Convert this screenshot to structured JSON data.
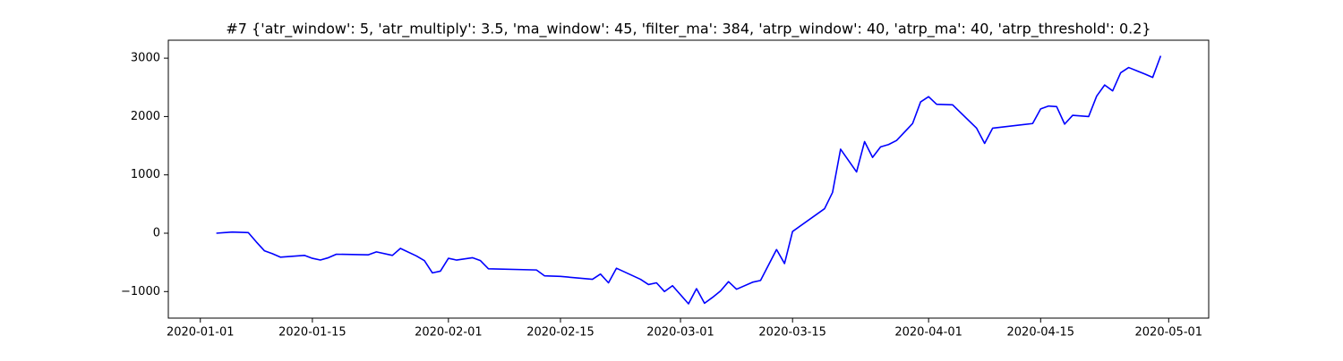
{
  "chart_data": {
    "type": "line",
    "title": "#7 {'atr_window': 5, 'atr_multiply': 3.5, 'ma_window': 45, 'filter_ma': 384, 'atrp_window': 40, 'atrp_ma': 40, 'atrp_threshold': 0.2}",
    "color": "#0000ff",
    "x": [
      "2020-01-03",
      "2020-01-04",
      "2020-01-05",
      "2020-01-07",
      "2020-01-08",
      "2020-01-09",
      "2020-01-10",
      "2020-01-11",
      "2020-01-14",
      "2020-01-15",
      "2020-01-16",
      "2020-01-17",
      "2020-01-18",
      "2020-01-22",
      "2020-01-23",
      "2020-01-25",
      "2020-01-26",
      "2020-01-28",
      "2020-01-29",
      "2020-01-30",
      "2020-01-31",
      "2020-02-01",
      "2020-02-02",
      "2020-02-04",
      "2020-02-05",
      "2020-02-06",
      "2020-02-12",
      "2020-02-13",
      "2020-02-15",
      "2020-02-19",
      "2020-02-20",
      "2020-02-21",
      "2020-02-22",
      "2020-02-25",
      "2020-02-26",
      "2020-02-27",
      "2020-02-28",
      "2020-02-29",
      "2020-03-02",
      "2020-03-03",
      "2020-03-04",
      "2020-03-05",
      "2020-03-06",
      "2020-03-07",
      "2020-03-08",
      "2020-03-10",
      "2020-03-11",
      "2020-03-13",
      "2020-03-14",
      "2020-03-15",
      "2020-03-19",
      "2020-03-20",
      "2020-03-21",
      "2020-03-23",
      "2020-03-24",
      "2020-03-25",
      "2020-03-26",
      "2020-03-27",
      "2020-03-28",
      "2020-03-30",
      "2020-03-31",
      "2020-04-01",
      "2020-04-02",
      "2020-04-04",
      "2020-04-07",
      "2020-04-08",
      "2020-04-09",
      "2020-04-14",
      "2020-04-15",
      "2020-04-16",
      "2020-04-17",
      "2020-04-18",
      "2020-04-19",
      "2020-04-21",
      "2020-04-22",
      "2020-04-23",
      "2020-04-24",
      "2020-04-25",
      "2020-04-26",
      "2020-04-28",
      "2020-04-29",
      "2020-04-30"
    ],
    "values": [
      0,
      10,
      20,
      10,
      -150,
      -300,
      -350,
      -410,
      -380,
      -430,
      -460,
      -420,
      -360,
      -370,
      -320,
      -380,
      -260,
      -390,
      -470,
      -680,
      -650,
      -430,
      -460,
      -420,
      -470,
      -610,
      -630,
      -730,
      -740,
      -790,
      -700,
      -850,
      -600,
      -790,
      -880,
      -850,
      -1000,
      -900,
      -1210,
      -950,
      -1200,
      -1100,
      -990,
      -830,
      -960,
      -840,
      -810,
      -280,
      -520,
      30,
      420,
      700,
      1440,
      1050,
      1570,
      1300,
      1480,
      1520,
      1590,
      1880,
      2250,
      2340,
      2210,
      2200,
      1800,
      1540,
      1800,
      1880,
      2130,
      2180,
      2170,
      1870,
      2020,
      2000,
      2350,
      2540,
      2440,
      2750,
      2840,
      2730,
      2670,
      3040
    ],
    "xlim": [
      "2019-12-28",
      "2020-05-06"
    ],
    "xticks": [
      "2020-01-01",
      "2020-01-15",
      "2020-02-01",
      "2020-02-15",
      "2020-03-01",
      "2020-03-15",
      "2020-04-01",
      "2020-04-15",
      "2020-05-01"
    ],
    "ylim": [
      -1455,
      3308
    ],
    "yticks": [
      {
        "value": -1000,
        "label": "−1000"
      },
      0,
      1000,
      2000,
      3000
    ]
  }
}
